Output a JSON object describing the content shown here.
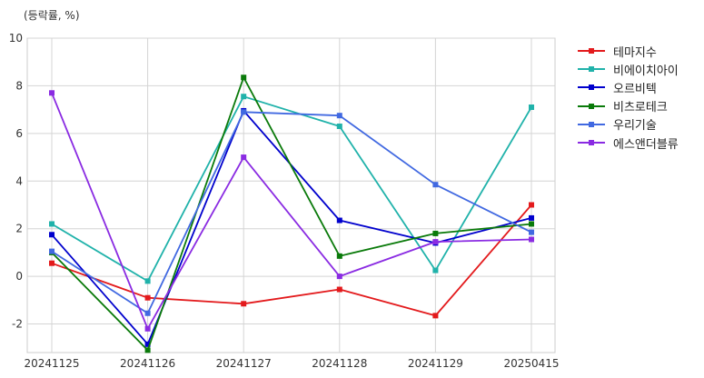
{
  "chart_data": {
    "type": "line",
    "unit_label": "(등락률, %)",
    "categories": [
      "20241125",
      "20241126",
      "20241127",
      "20241128",
      "20241129",
      "20250415"
    ],
    "ylim": [
      -3.2,
      10
    ],
    "yticks": [
      -2,
      0,
      2,
      4,
      6,
      8,
      10
    ],
    "grid": true,
    "legend_position": "right",
    "series": [
      {
        "name": "테마지수",
        "color": "#e31a1c",
        "values": [
          0.55,
          -0.9,
          -1.15,
          -0.55,
          -1.65,
          3.0
        ]
      },
      {
        "name": "비에이치아이",
        "color": "#20b2aa",
        "values": [
          2.2,
          -0.2,
          7.55,
          6.3,
          0.25,
          7.1
        ]
      },
      {
        "name": "오르비텍",
        "color": "#0000cd",
        "values": [
          1.75,
          -2.85,
          6.95,
          2.35,
          1.4,
          2.45
        ]
      },
      {
        "name": "비츠로테크",
        "color": "#0a7a0a",
        "values": [
          1.0,
          -3.1,
          8.35,
          0.85,
          1.8,
          2.2
        ]
      },
      {
        "name": "우리기술",
        "color": "#4169e1",
        "values": [
          1.05,
          -1.55,
          6.9,
          6.75,
          3.85,
          1.85
        ]
      },
      {
        "name": "에스앤더블류",
        "color": "#8a2be2",
        "values": [
          7.7,
          -2.2,
          5.0,
          0.0,
          1.45,
          1.55
        ]
      }
    ]
  }
}
